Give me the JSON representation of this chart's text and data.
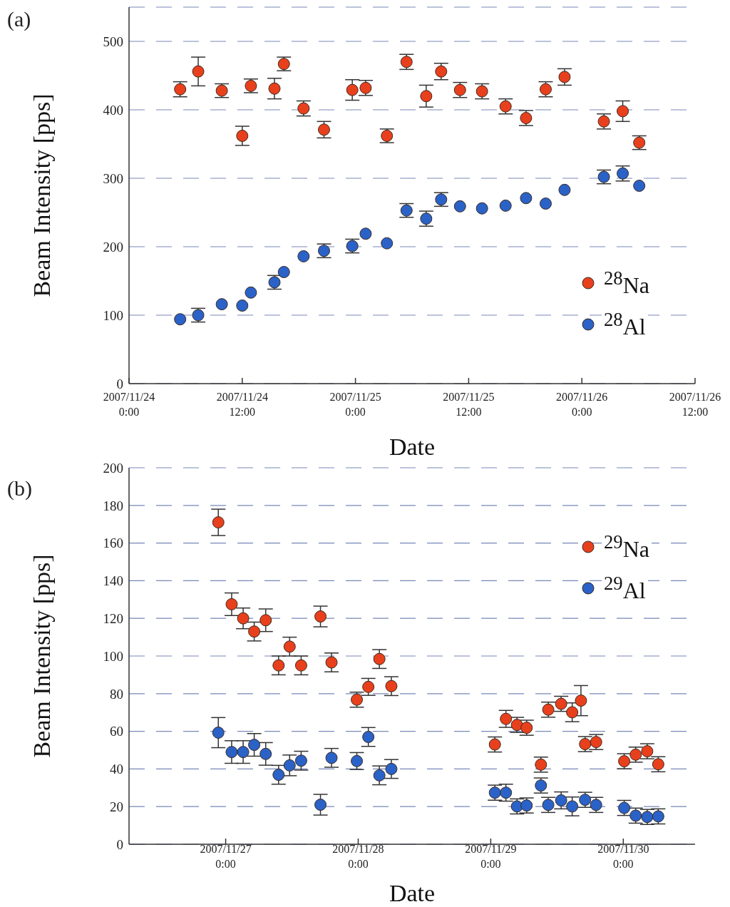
{
  "chart_data": [
    {
      "type": "scatter",
      "title": "(a)",
      "xlabel": "Date",
      "ylabel": "Beam Intensity [pps]",
      "xlim": [
        "2007-11-24T00:00",
        "2007-11-26T12:00"
      ],
      "xticks": [
        {
          "value": "2007-11-24T00:00",
          "label": "2007/11/24 0:00"
        },
        {
          "value": "2007-11-24T12:00",
          "label": "2007/11/24 12:00"
        },
        {
          "value": "2007-11-25T00:00",
          "label": "2007/11/25 0:00"
        },
        {
          "value": "2007-11-25T12:00",
          "label": "2007/11/25 12:00"
        },
        {
          "value": "2007-11-26T00:00",
          "label": "2007/11/26 0:00"
        },
        {
          "value": "2007-11-26T12:00",
          "label": "2007/11/26 12:00"
        }
      ],
      "ylim": [
        0,
        550
      ],
      "yticks": [
        0,
        100,
        200,
        300,
        400,
        500
      ],
      "grid": "y",
      "legend": "bottom right",
      "marker": "circle",
      "series": [
        {
          "name": "$^{28}$Na",
          "color": "#e8401c",
          "x": [
            "2007-11-24T05:25",
            "2007-11-24T07:20",
            "2007-11-24T09:50",
            "2007-11-24T12:00",
            "2007-11-24T12:55",
            "2007-11-24T15:25",
            "2007-11-24T16:25",
            "2007-11-24T18:30",
            "2007-11-24T20:40",
            "2007-11-24T23:40",
            "2007-11-25T01:05",
            "2007-11-25T03:20",
            "2007-11-25T05:25",
            "2007-11-25T07:30",
            "2007-11-25T09:05",
            "2007-11-25T11:05",
            "2007-11-25T13:25",
            "2007-11-25T15:55",
            "2007-11-25T18:05",
            "2007-11-25T20:10",
            "2007-11-25T22:10",
            "2007-11-26T02:20",
            "2007-11-26T04:20",
            "2007-11-26T06:05"
          ],
          "values": [
            430,
            456,
            428,
            362,
            435,
            431,
            467,
            402,
            371,
            429,
            432,
            362,
            470,
            420,
            456,
            429,
            427,
            405,
            388,
            430,
            448,
            383,
            398,
            352
          ],
          "errors": [
            11,
            21,
            10,
            14,
            10,
            15,
            10,
            11,
            12,
            15,
            11,
            10,
            11,
            16,
            12,
            11,
            11,
            11,
            11,
            11,
            12,
            11,
            15,
            10
          ]
        },
        {
          "name": "$^{28}$Al",
          "color": "#2a62c8",
          "x": [
            "2007-11-24T05:25",
            "2007-11-24T07:20",
            "2007-11-24T09:50",
            "2007-11-24T12:00",
            "2007-11-24T12:55",
            "2007-11-24T15:25",
            "2007-11-24T16:25",
            "2007-11-24T18:30",
            "2007-11-24T20:40",
            "2007-11-24T23:40",
            "2007-11-25T01:05",
            "2007-11-25T03:20",
            "2007-11-25T05:25",
            "2007-11-25T07:30",
            "2007-11-25T09:05",
            "2007-11-25T11:05",
            "2007-11-25T13:25",
            "2007-11-25T15:55",
            "2007-11-25T18:05",
            "2007-11-25T20:10",
            "2007-11-25T22:10",
            "2007-11-26T02:20",
            "2007-11-26T04:20",
            "2007-11-26T06:05"
          ],
          "values": [
            94,
            100,
            116,
            114,
            133,
            148,
            163,
            186,
            194,
            201,
            219,
            205,
            253,
            241,
            269,
            259,
            256,
            260,
            271,
            263,
            283,
            302,
            307,
            289
          ],
          "errors": [
            null,
            10,
            null,
            null,
            null,
            10,
            null,
            null,
            10,
            10,
            null,
            null,
            10,
            11,
            10,
            null,
            null,
            null,
            null,
            null,
            null,
            10,
            11,
            null
          ]
        }
      ]
    },
    {
      "type": "scatter",
      "title": "(b)",
      "xlabel": "Date",
      "ylabel": "Beam Intensity [pps]",
      "xlim": [
        "2007-11-26T06:30",
        "2007-11-30T13:00"
      ],
      "xticks": [
        {
          "value": "2007-11-27T00:00",
          "label": "2007/11/27 0:00"
        },
        {
          "value": "2007-11-28T00:00",
          "label": "2007/11/28 0:00"
        },
        {
          "value": "2007-11-29T00:00",
          "label": "2007/11/29 0:00"
        },
        {
          "value": "2007-11-30T00:00",
          "label": "2007/11/30 0:00"
        }
      ],
      "ylim": [
        0,
        200
      ],
      "yticks": [
        0,
        20,
        40,
        60,
        80,
        100,
        120,
        140,
        160,
        180,
        200
      ],
      "grid": "y",
      "legend": "top right",
      "marker": "circle",
      "series": [
        {
          "name": "$^{29}$Na",
          "color": "#e8401c",
          "x": [
            "2007-11-26T22:40",
            "2007-11-27T01:05",
            "2007-11-27T03:10",
            "2007-11-27T05:10",
            "2007-11-27T07:15",
            "2007-11-27T09:35",
            "2007-11-27T11:35",
            "2007-11-27T13:40",
            "2007-11-27T17:10",
            "2007-11-27T19:10",
            "2007-11-27T23:45",
            "2007-11-28T01:50",
            "2007-11-28T03:50",
            "2007-11-28T06:00",
            "2007-11-29T00:45",
            "2007-11-29T02:45",
            "2007-11-29T04:45",
            "2007-11-29T06:30",
            "2007-11-29T09:05",
            "2007-11-29T10:25",
            "2007-11-29T12:45",
            "2007-11-29T14:45",
            "2007-11-29T16:20",
            "2007-11-29T17:05",
            "2007-11-29T19:05",
            "2007-11-30T00:10",
            "2007-11-30T02:15",
            "2007-11-30T04:20",
            "2007-11-30T06:20"
          ],
          "values": [
            171,
            127.5,
            120,
            113,
            119,
            95,
            105,
            95,
            121,
            96.6,
            76.8,
            83.6,
            98.4,
            84,
            53,
            66.6,
            63.4,
            61.9,
            42.3,
            71.5,
            74.6,
            70.1,
            76.3,
            53.2,
            54.3,
            44.1,
            47.6,
            49.4,
            42.5
          ],
          "errors": [
            7,
            6,
            5.5,
            5,
            6,
            5,
            5,
            5,
            5.5,
            5,
            4,
            4.5,
            5,
            5,
            4,
            4.5,
            4,
            4,
            4,
            4,
            4,
            5,
            8,
            4,
            4,
            4,
            4,
            4,
            4
          ]
        },
        {
          "name": "$^{29}$Al",
          "color": "#2a62c8",
          "x": [
            "2007-11-26T22:40",
            "2007-11-27T01:05",
            "2007-11-27T03:10",
            "2007-11-27T05:10",
            "2007-11-27T07:15",
            "2007-11-27T09:35",
            "2007-11-27T11:35",
            "2007-11-27T13:40",
            "2007-11-27T17:10",
            "2007-11-27T19:10",
            "2007-11-27T23:45",
            "2007-11-28T01:50",
            "2007-11-28T03:50",
            "2007-11-28T06:00",
            "2007-11-29T00:45",
            "2007-11-29T02:45",
            "2007-11-29T04:45",
            "2007-11-29T06:30",
            "2007-11-29T09:05",
            "2007-11-29T10:25",
            "2007-11-29T12:45",
            "2007-11-29T14:45",
            "2007-11-29T17:05",
            "2007-11-29T19:05",
            "2007-11-30T00:10",
            "2007-11-30T02:15",
            "2007-11-30T04:20",
            "2007-11-30T06:20"
          ],
          "values": [
            59.3,
            49,
            49,
            52.8,
            48,
            36.9,
            41.9,
            44.4,
            21,
            45.9,
            44.2,
            57,
            36.6,
            40,
            27.4,
            27.4,
            20.1,
            20.6,
            31.2,
            20.9,
            23.3,
            20.1,
            23.6,
            20.9,
            19.3,
            15.2,
            14.5,
            14.8
          ],
          "errors": [
            8,
            6,
            6,
            6,
            6,
            5,
            5.5,
            5,
            5.5,
            5,
            4.5,
            5,
            5,
            5,
            4,
            4.5,
            4,
            4,
            4,
            4,
            4.5,
            5,
            4,
            4,
            4,
            4,
            4,
            4
          ]
        }
      ]
    }
  ]
}
